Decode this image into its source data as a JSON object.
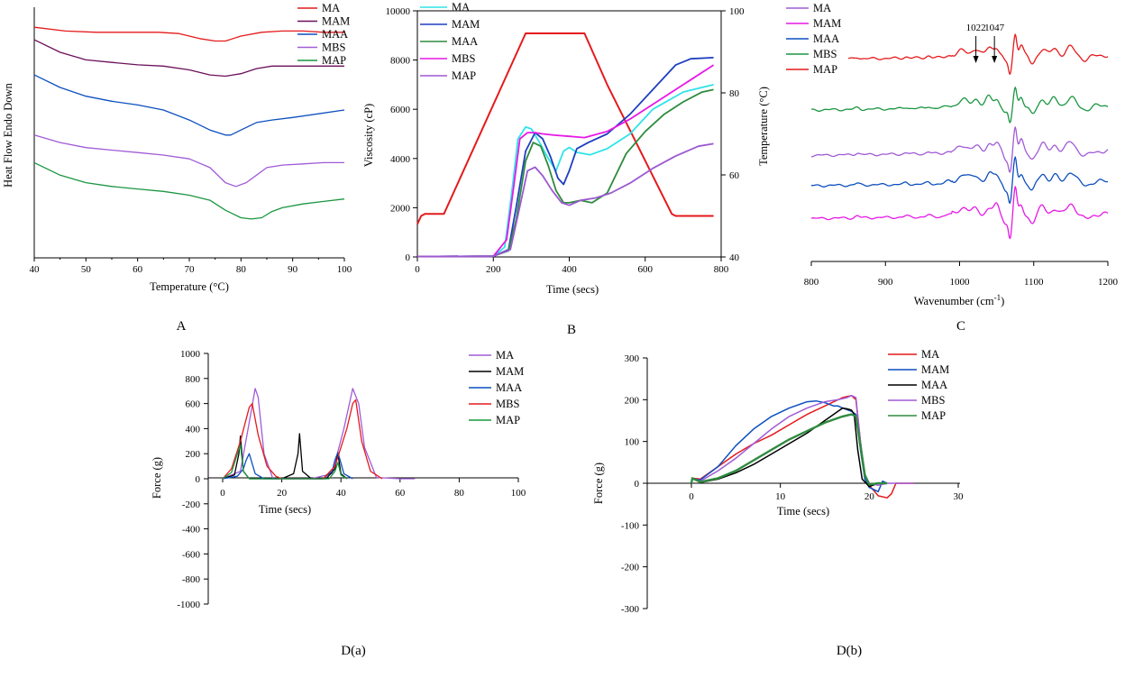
{
  "colors": {
    "red": "#e41a1c",
    "maroon": "#6b0f5a",
    "blue": "#0d4fbf",
    "green": "#1a9641",
    "purple": "#a05bd6",
    "cyan": "#2fe3e8",
    "magenta": "#e619e6",
    "black": "#000000",
    "navy": "#1f3fbf",
    "darkgreen": "#2e8b3e",
    "medpurple": "#9b59d0"
  },
  "panel_labels": {
    "A": "A",
    "B": "B",
    "C": "C",
    "Da": "D(a)",
    "Db": "D(b)"
  },
  "chart_data": [
    {
      "id": "A",
      "type": "line",
      "title": "",
      "xlabel": "Temperature (°C)",
      "ylabel": "Heat Flow Endo Down",
      "xlim": [
        40,
        100
      ],
      "ylim": [
        0,
        1
      ],
      "xticks": [
        "40",
        "50",
        "60",
        "70",
        "80",
        "90",
        "100"
      ],
      "legend_position": "top-right",
      "series": [
        {
          "name": "MA",
          "color_key": "red",
          "x": [
            40,
            46,
            52,
            58,
            64,
            68,
            72,
            75,
            77,
            80,
            84,
            88,
            92,
            96,
            100
          ],
          "y": [
            0.92,
            0.905,
            0.9,
            0.9,
            0.9,
            0.895,
            0.875,
            0.865,
            0.865,
            0.885,
            0.9,
            0.905,
            0.905,
            0.9,
            0.9
          ]
        },
        {
          "name": "MAM",
          "color_key": "maroon",
          "x": [
            40,
            45,
            50,
            55,
            60,
            65,
            70,
            74,
            77,
            80,
            83,
            86,
            90,
            95,
            100
          ],
          "y": [
            0.87,
            0.82,
            0.79,
            0.78,
            0.77,
            0.765,
            0.75,
            0.73,
            0.725,
            0.735,
            0.755,
            0.765,
            0.765,
            0.765,
            0.765
          ]
        },
        {
          "name": "MAA",
          "color_key": "blue",
          "x": [
            40,
            45,
            50,
            55,
            60,
            65,
            70,
            74,
            77,
            78,
            80,
            83,
            86,
            90,
            95,
            100
          ],
          "y": [
            0.73,
            0.68,
            0.645,
            0.625,
            0.61,
            0.59,
            0.55,
            0.51,
            0.49,
            0.49,
            0.51,
            0.54,
            0.55,
            0.56,
            0.575,
            0.59
          ]
        },
        {
          "name": "MBS",
          "color_key": "purple",
          "x": [
            40,
            45,
            50,
            55,
            60,
            65,
            70,
            74,
            77,
            79,
            81,
            83,
            85,
            88,
            92,
            96,
            100
          ],
          "y": [
            0.49,
            0.46,
            0.44,
            0.43,
            0.42,
            0.41,
            0.395,
            0.36,
            0.3,
            0.285,
            0.3,
            0.33,
            0.36,
            0.37,
            0.375,
            0.38,
            0.38
          ]
        },
        {
          "name": "MAP",
          "color_key": "green",
          "x": [
            40,
            45,
            50,
            55,
            60,
            65,
            70,
            74,
            77,
            80,
            82,
            84,
            86,
            88,
            92,
            96,
            100
          ],
          "y": [
            0.38,
            0.33,
            0.3,
            0.285,
            0.275,
            0.265,
            0.25,
            0.23,
            0.19,
            0.16,
            0.155,
            0.16,
            0.185,
            0.2,
            0.215,
            0.225,
            0.235
          ]
        }
      ]
    },
    {
      "id": "B",
      "type": "line",
      "title": "",
      "xlabel": "Time (secs)",
      "ylabel": "Viscosity (cP)",
      "y2label": "Temperature (°C)",
      "xlim": [
        0,
        800
      ],
      "ylim": [
        0,
        10000
      ],
      "y2lim": [
        40,
        100
      ],
      "xticks": [
        "0",
        "200",
        "400",
        "600",
        "800"
      ],
      "yticks": [
        "0",
        "2000",
        "4000",
        "6000",
        "8000",
        "10000"
      ],
      "y2ticks": [
        "40",
        "60",
        "80",
        "100"
      ],
      "legend_position": "top-left",
      "temperature_series": {
        "name": "Temperature",
        "color_key": "red",
        "x": [
          0,
          10,
          20,
          70,
          285,
          300,
          440,
          500,
          670,
          680,
          780
        ],
        "y": [
          48,
          50,
          50.5,
          50.5,
          94.5,
          94.5,
          94.5,
          82,
          50.5,
          50,
          50
        ]
      },
      "series": [
        {
          "name": "MA",
          "color_key": "cyan",
          "x": [
            0,
            200,
            230,
            250,
            265,
            285,
            300,
            320,
            345,
            365,
            385,
            400,
            420,
            455,
            500,
            560,
            620,
            700,
            780
          ],
          "y": [
            20,
            30,
            400,
            2800,
            4800,
            5280,
            5200,
            4700,
            4000,
            3500,
            4300,
            4450,
            4250,
            4150,
            4400,
            5000,
            6000,
            6700,
            7000
          ]
        },
        {
          "name": "MAM",
          "color_key": "navy",
          "x": [
            0,
            200,
            240,
            260,
            285,
            310,
            330,
            350,
            370,
            385,
            400,
            420,
            450,
            500,
            560,
            620,
            680,
            720,
            780
          ],
          "y": [
            20,
            30,
            300,
            2000,
            4300,
            5050,
            4800,
            4100,
            3200,
            2950,
            3500,
            4400,
            4650,
            5000,
            5800,
            6800,
            7800,
            8050,
            8100
          ]
        },
        {
          "name": "MAA",
          "color_key": "darkgreen",
          "x": [
            0,
            200,
            240,
            260,
            285,
            305,
            325,
            345,
            365,
            385,
            400,
            430,
            460,
            500,
            550,
            600,
            650,
            700,
            750,
            780
          ],
          "y": [
            20,
            30,
            250,
            1500,
            3900,
            4650,
            4500,
            3700,
            2700,
            2200,
            2200,
            2300,
            2200,
            2600,
            4200,
            5100,
            5800,
            6300,
            6700,
            6800
          ]
        },
        {
          "name": "MBS",
          "color_key": "magenta",
          "x": [
            0,
            200,
            235,
            255,
            270,
            290,
            310,
            330,
            360,
            400,
            440,
            500,
            560,
            620,
            700,
            780
          ],
          "y": [
            20,
            30,
            700,
            3000,
            4800,
            5050,
            5050,
            5000,
            4950,
            4900,
            4850,
            5100,
            5600,
            6200,
            7000,
            7800
          ]
        },
        {
          "name": "MAP",
          "color_key": "medpurple",
          "x": [
            0,
            200,
            245,
            265,
            290,
            310,
            330,
            355,
            380,
            400,
            430,
            470,
            510,
            560,
            620,
            680,
            740,
            780
          ],
          "y": [
            20,
            30,
            300,
            1700,
            3500,
            3650,
            3300,
            2700,
            2200,
            2100,
            2300,
            2400,
            2600,
            3000,
            3600,
            4100,
            4500,
            4600
          ]
        }
      ]
    },
    {
      "id": "C",
      "type": "line",
      "title": "",
      "xlabel": "Wavenumber (cm",
      "xlabel_sup": "-1",
      "xlabel_close": ")",
      "ylabel": "",
      "xlim": [
        800,
        1200
      ],
      "xticks": [
        "800",
        "900",
        "1000",
        "1100",
        "1200"
      ],
      "annotations": [
        {
          "text": "1022",
          "x": 1022
        },
        {
          "text": "1047",
          "x": 1047
        }
      ],
      "legend_position": "top-left",
      "series": [
        {
          "name": "MA",
          "color_key": "purple",
          "baseline": 0.42
        },
        {
          "name": "MAM",
          "color_key": "magenta",
          "baseline": 0.17
        },
        {
          "name": "MAA",
          "color_key": "blue",
          "baseline": 0.3
        },
        {
          "name": "MBS",
          "color_key": "green",
          "baseline": 0.6
        },
        {
          "name": "MAP",
          "color_key": "red",
          "baseline": 0.8
        }
      ]
    },
    {
      "id": "Da",
      "type": "line",
      "title": "",
      "xlabel": "Time (secs)",
      "ylabel": "Force (g)",
      "xlim": [
        0,
        100
      ],
      "ylim": [
        -1000,
        1000
      ],
      "xticks": [
        "0",
        "20",
        "40",
        "60",
        "80",
        "100"
      ],
      "yticks": [
        "-1000",
        "-800",
        "-600",
        "-400",
        "-200",
        "0",
        "200",
        "400",
        "600",
        "800",
        "1000"
      ],
      "legend_position": "top-right",
      "series": [
        {
          "name": "MA",
          "color_key": "purple",
          "x": [
            0,
            6,
            9,
            11,
            12,
            14,
            17,
            30,
            37,
            41,
            44,
            46,
            48,
            52,
            60,
            65
          ],
          "y": [
            0,
            60,
            450,
            720,
            650,
            200,
            0,
            0,
            40,
            400,
            720,
            600,
            250,
            10,
            0,
            0
          ]
        },
        {
          "name": "MAM",
          "color_key": "black",
          "x": [
            0,
            4,
            5.5,
            6,
            7,
            9,
            20,
            24,
            25.5,
            26,
            27,
            30,
            35,
            38,
            39,
            40,
            42
          ],
          "y": [
            0,
            30,
            200,
            340,
            60,
            0,
            0,
            40,
            200,
            360,
            60,
            0,
            0,
            80,
            200,
            40,
            0
          ]
        },
        {
          "name": "MAA",
          "color_key": "blue",
          "x": [
            0,
            5,
            7,
            8,
            9,
            11,
            14,
            34,
            37,
            38,
            39,
            41,
            44
          ],
          "y": [
            0,
            20,
            80,
            150,
            200,
            40,
            0,
            0,
            60,
            150,
            210,
            40,
            0
          ]
        },
        {
          "name": "MBS",
          "color_key": "red",
          "x": [
            0,
            3,
            6,
            9,
            10,
            12,
            15,
            18,
            20,
            34,
            38,
            42,
            44,
            45,
            47,
            50,
            54
          ],
          "y": [
            0,
            80,
            300,
            570,
            600,
            350,
            100,
            20,
            0,
            0,
            100,
            400,
            600,
            630,
            300,
            60,
            0
          ]
        },
        {
          "name": "MAP",
          "color_key": "green",
          "x": [
            0,
            3,
            5,
            6,
            7,
            9,
            10,
            36,
            38,
            39,
            40,
            42
          ],
          "y": [
            0,
            50,
            200,
            270,
            60,
            0,
            0,
            0,
            60,
            130,
            30,
            0
          ]
        }
      ]
    },
    {
      "id": "Db",
      "type": "line",
      "title": "",
      "xlabel": "Time (secs)",
      "ylabel": "Force (g)",
      "xlim": [
        0,
        30
      ],
      "ylim": [
        -300,
        300
      ],
      "xticks": [
        "0",
        "10",
        "20",
        "30"
      ],
      "yticks": [
        "-300",
        "-200",
        "-100",
        "0",
        "100",
        "200",
        "300"
      ],
      "legend_position": "top-right",
      "series": [
        {
          "name": "MA",
          "color_key": "red",
          "x": [
            0,
            0.1,
            1,
            3,
            5,
            7,
            9,
            11,
            13,
            15,
            17,
            18,
            18.5,
            19,
            19.5,
            20,
            21,
            22,
            22.5,
            23,
            24,
            25
          ],
          "y": [
            0,
            12,
            10,
            40,
            70,
            95,
            115,
            140,
            165,
            185,
            205,
            210,
            200,
            100,
            20,
            -5,
            -30,
            -35,
            -25,
            0,
            0,
            0
          ]
        },
        {
          "name": "MAM",
          "color_key": "blue",
          "x": [
            0,
            0.1,
            1,
            3,
            5,
            7,
            9,
            11,
            13,
            14,
            15,
            16,
            16.5,
            17,
            18,
            18.5,
            19,
            19.5,
            20,
            21,
            21.5,
            22
          ],
          "y": [
            0,
            10,
            8,
            40,
            90,
            130,
            160,
            180,
            195,
            197,
            193,
            185,
            185,
            180,
            172,
            165,
            80,
            10,
            -10,
            -20,
            5,
            0
          ]
        },
        {
          "name": "MAA",
          "color_key": "black",
          "x": [
            0,
            0.1,
            1,
            3,
            5,
            7,
            9,
            11,
            13,
            15,
            17,
            17.5,
            18,
            18.3,
            18.7,
            19.2,
            20,
            21,
            22
          ],
          "y": [
            0,
            12,
            2,
            10,
            25,
            45,
            70,
            95,
            120,
            150,
            180,
            178,
            175,
            165,
            80,
            10,
            -8,
            0,
            0
          ]
        },
        {
          "name": "MBS",
          "color_key": "purple",
          "x": [
            0,
            0.1,
            1,
            3,
            5,
            7,
            9,
            11,
            13,
            15,
            16.5,
            17.5,
            18,
            18.5,
            19,
            19.5,
            20,
            21,
            22,
            25
          ],
          "y": [
            0,
            12,
            5,
            30,
            60,
            95,
            130,
            160,
            180,
            195,
            200,
            205,
            210,
            205,
            100,
            20,
            0,
            -5,
            0,
            0
          ]
        },
        {
          "name": "MAP",
          "color_key": "darkgreen",
          "x": [
            0,
            0.1,
            1,
            3,
            5,
            7,
            9,
            11,
            13,
            15,
            17,
            18,
            18.5,
            19,
            19.5,
            20,
            21,
            22
          ],
          "y": [
            0,
            12,
            3,
            12,
            30,
            55,
            80,
            105,
            125,
            145,
            160,
            165,
            160,
            90,
            20,
            -3,
            0,
            0
          ]
        }
      ]
    }
  ]
}
